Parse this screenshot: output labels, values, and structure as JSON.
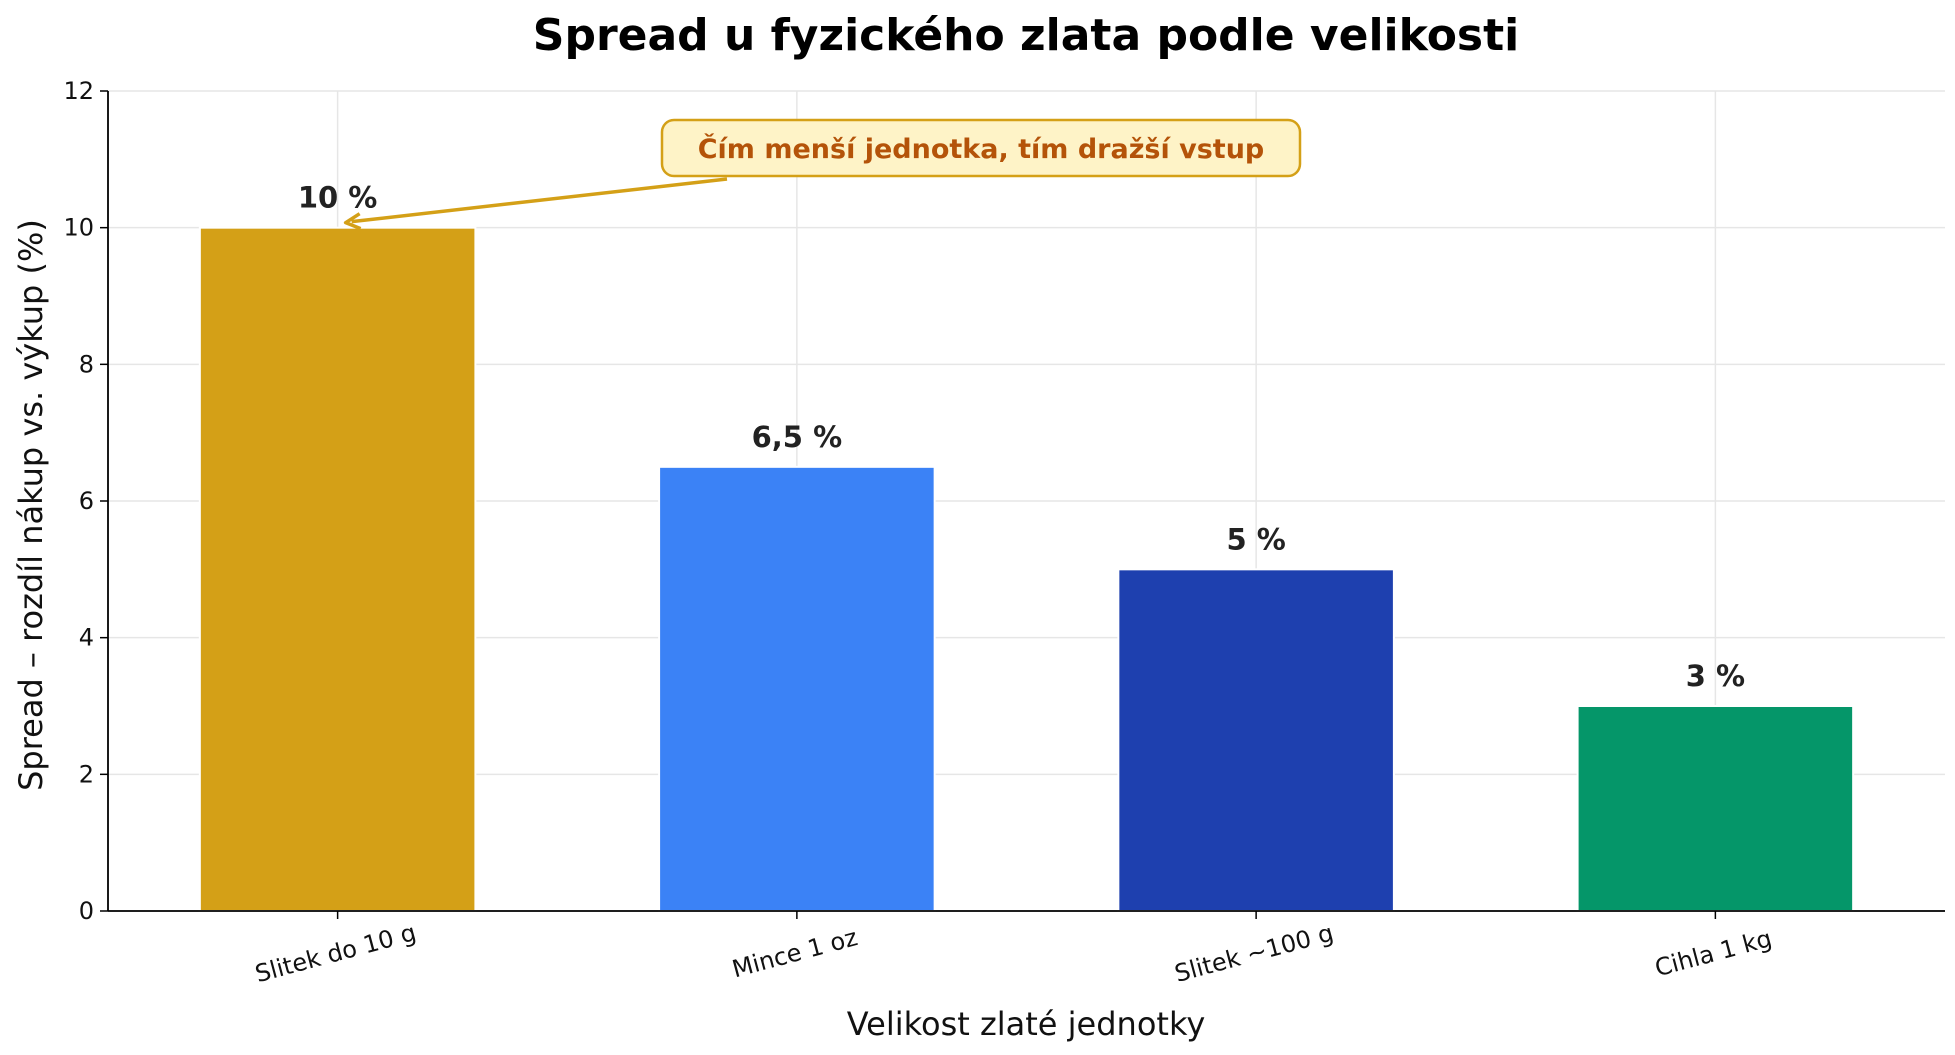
{
  "chart_data": {
    "type": "bar",
    "title": "Spread u fyzického zlata podle velikosti",
    "xlabel": "Velikost zlaté jednotky",
    "ylabel": "Spread – rozdíl nákup vs. výkup (%)",
    "ylim": [
      0,
      12
    ],
    "yticks": [
      0,
      2,
      4,
      6,
      8,
      10,
      12
    ],
    "grid": true,
    "categories": [
      "Slitek do 10 g",
      "Mince 1 oz",
      "Slitek ~100 g",
      "Cihla 1 kg"
    ],
    "values": [
      10,
      6.5,
      5,
      3
    ],
    "data_labels": [
      "10 %",
      "6,5 %",
      "5 %",
      "3 %"
    ],
    "colors": [
      "#D4A017",
      "#3B82F6",
      "#1E40AF",
      "#059669"
    ],
    "annotation": {
      "text": "Čím menší jednotka, tím dražší vstup",
      "target_category": "Slitek do 10 g",
      "target_value": 10,
      "text_color": "#B45309",
      "box_fill": "#FEF3C7",
      "box_edge": "#D4A017",
      "arrow_color": "#D4A017"
    }
  }
}
